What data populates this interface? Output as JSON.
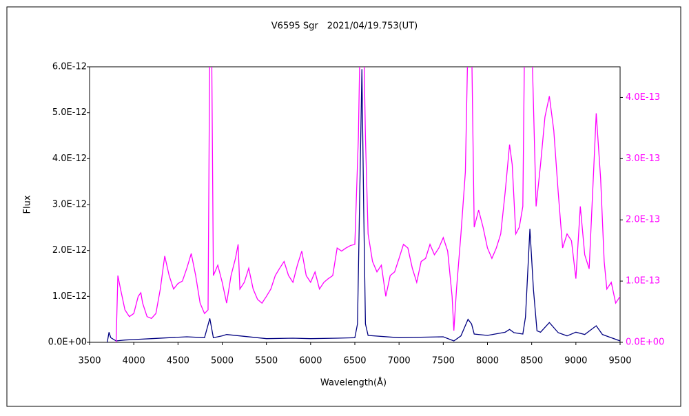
{
  "chart_data": {
    "type": "line",
    "title": "V6595 Sgr　2021/04/19.753(UT)",
    "x_label": "Wavelength(Å)",
    "y_label": "Flux",
    "xlim": [
      3500,
      9500
    ],
    "xticks": [
      3500,
      4000,
      4500,
      5000,
      5500,
      6000,
      6500,
      7000,
      7500,
      8000,
      8500,
      9000,
      9500
    ],
    "ylim": [
      0,
      6e-12
    ],
    "yticks": [
      {
        "value": 0,
        "label": "0.0E+00"
      },
      {
        "value": 1e-12,
        "label": "1.0E-12"
      },
      {
        "value": 2e-12,
        "label": "2.0E-12"
      },
      {
        "value": 3e-12,
        "label": "3.0E-12"
      },
      {
        "value": 4e-12,
        "label": "4.0E-12"
      },
      {
        "value": 5e-12,
        "label": "5.0E-12"
      },
      {
        "value": 6e-12,
        "label": "6.0E-12"
      }
    ],
    "y2lim": [
      0,
      4.5e-13
    ],
    "y2ticks": [
      {
        "value": 0,
        "label": "0.0E+00"
      },
      {
        "value": 1e-13,
        "label": "1.0E-13"
      },
      {
        "value": 2e-13,
        "label": "2.0E-13"
      },
      {
        "value": 3e-13,
        "label": "3.0E-13"
      },
      {
        "value": 4e-13,
        "label": "4.0E-13"
      }
    ],
    "series": [
      {
        "color": "#000080",
        "x": [
          3700,
          3720,
          3740,
          3800,
          3900,
          4000,
          4200,
          4400,
          4600,
          4800,
          4860,
          4900,
          5000,
          5050,
          5200,
          5500,
          5800,
          6000,
          6300,
          6500,
          6530,
          6560,
          6580,
          6600,
          6620,
          6650,
          7000,
          7500,
          7620,
          7700,
          7780,
          7820,
          7850,
          8000,
          8200,
          8250,
          8300,
          8400,
          8430,
          8480,
          8520,
          8560,
          8600,
          8700,
          8800,
          8900,
          9000,
          9100,
          9230,
          9300,
          9400,
          9500
        ],
        "values": [
          0,
          2.2e-13,
          1e-13,
          3e-14,
          5e-14,
          6e-14,
          8e-14,
          1e-13,
          1.2e-13,
          1e-13,
          5.2e-13,
          1e-13,
          1.4e-13,
          1.7e-13,
          1.4e-13,
          8e-14,
          9e-14,
          8e-14,
          9e-14,
          1e-13,
          4e-13,
          3.7e-12,
          5.95e-12,
          2.95e-12,
          4e-13,
          1.5e-13,
          1e-13,
          1.2e-13,
          3e-14,
          1.4e-13,
          5e-13,
          4e-13,
          1.8e-13,
          1.5e-13,
          2.2e-13,
          2.8e-13,
          2.1e-13,
          1.8e-13,
          5.5e-13,
          2.47e-12,
          1.15e-12,
          2.5e-13,
          2.2e-13,
          4.3e-13,
          2.1e-13,
          1.4e-13,
          2.2e-13,
          1.7e-13,
          3.6e-13,
          1.7e-13,
          1e-13,
          3e-14
        ]
      },
      {
        "color": "#ff00ff",
        "axis": "y2",
        "x": [
          3800,
          3820,
          3850,
          3900,
          3950,
          4000,
          4050,
          4080,
          4100,
          4150,
          4200,
          4250,
          4300,
          4350,
          4400,
          4450,
          4500,
          4550,
          4600,
          4650,
          4700,
          4750,
          4800,
          4840,
          4860,
          4880,
          4900,
          4950,
          5000,
          5050,
          5100,
          5150,
          5180,
          5200,
          5250,
          5300,
          5350,
          5400,
          5450,
          5500,
          5550,
          5600,
          5650,
          5700,
          5750,
          5800,
          5850,
          5900,
          5950,
          6000,
          6050,
          6100,
          6150,
          6200,
          6250,
          6300,
          6350,
          6400,
          6450,
          6500,
          6540,
          6560,
          6600,
          6620,
          6650,
          6700,
          6750,
          6800,
          6850,
          6900,
          6950,
          7000,
          7050,
          7100,
          7150,
          7200,
          7250,
          7300,
          7350,
          7400,
          7450,
          7500,
          7550,
          7600,
          7620,
          7650,
          7700,
          7750,
          7780,
          7820,
          7850,
          7900,
          7950,
          8000,
          8050,
          8100,
          8150,
          8200,
          8250,
          8280,
          8320,
          8360,
          8400,
          8420,
          8500,
          8550,
          8600,
          8650,
          8700,
          8750,
          8800,
          8850,
          8900,
          8950,
          9000,
          9050,
          9100,
          9150,
          9200,
          9230,
          9280,
          9320,
          9350,
          9400,
          9450,
          9500
        ],
        "values": [
          0,
          1.09e-13,
          8.7e-14,
          5.3e-14,
          4.2e-14,
          4.7e-14,
          7.5e-14,
          8.1e-14,
          6.4e-14,
          4.2e-14,
          3.9e-14,
          4.7e-14,
          8.7e-14,
          1.41e-13,
          1.09e-13,
          8.7e-14,
          9.6e-14,
          1e-13,
          1.21e-13,
          1.45e-13,
          1.09e-13,
          6.4e-14,
          4.7e-14,
          5.3e-14,
          5e-13,
          5e-13,
          1.09e-13,
          1.26e-13,
          9.8e-14,
          6.4e-14,
          1.09e-13,
          1.37e-13,
          1.6e-13,
          8.7e-14,
          9.8e-14,
          1.21e-13,
          8.7e-14,
          7e-14,
          6.4e-14,
          7.5e-14,
          8.7e-14,
          1.09e-13,
          1.21e-13,
          1.32e-13,
          1.09e-13,
          9.8e-14,
          1.26e-13,
          1.49e-13,
          1.09e-13,
          9.8e-14,
          1.15e-13,
          8.7e-14,
          9.8e-14,
          1.04e-13,
          1.09e-13,
          1.54e-13,
          1.49e-13,
          1.54e-13,
          1.58e-13,
          1.6e-13,
          3.35e-13,
          5e-13,
          5e-13,
          3.35e-13,
          1.77e-13,
          1.32e-13,
          1.15e-13,
          1.26e-13,
          7.5e-14,
          1.09e-13,
          1.15e-13,
          1.37e-13,
          1.6e-13,
          1.54e-13,
          1.21e-13,
          9.8e-14,
          1.32e-13,
          1.37e-13,
          1.6e-13,
          1.43e-13,
          1.54e-13,
          1.71e-13,
          1.49e-13,
          7.5e-14,
          1.9e-14,
          8.7e-14,
          1.77e-13,
          2.78e-13,
          5e-13,
          5e-13,
          1.88e-13,
          2.16e-13,
          1.88e-13,
          1.54e-13,
          1.37e-13,
          1.54e-13,
          1.77e-13,
          2.45e-13,
          3.23e-13,
          2.9e-13,
          1.77e-13,
          1.88e-13,
          2.22e-13,
          5e-13,
          5e-13,
          2.22e-13,
          2.9e-13,
          3.68e-13,
          4.02e-13,
          3.46e-13,
          2.45e-13,
          1.54e-13,
          1.77e-13,
          1.66e-13,
          1.04e-13,
          2.22e-13,
          1.43e-13,
          1.2e-13,
          2.78e-13,
          3.74e-13,
          2.67e-13,
          1.32e-13,
          8.7e-14,
          9.8e-14,
          6.4e-14,
          7.5e-14
        ]
      }
    ]
  }
}
